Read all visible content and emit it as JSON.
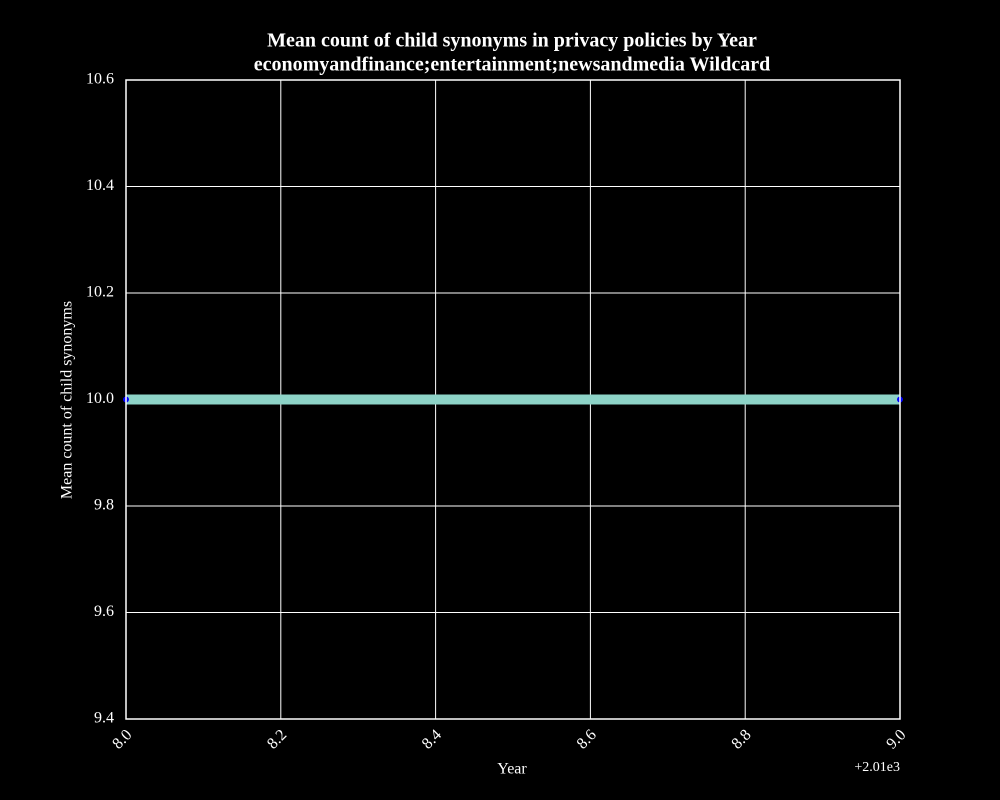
{
  "chart_data": {
    "type": "line",
    "title": "Mean count of child synonyms in privacy policies by Year",
    "subtitle": "economyandfinance;entertainment;newsandmedia Wildcard",
    "x_label": "Year",
    "y_label": "Mean count of child synonyms",
    "x_offset_label": "+2.01e3",
    "x": [
      8,
      9
    ],
    "series": [
      {
        "color": "#8dd3c7",
        "marker_color": "#0000ff",
        "values": [
          10,
          10
        ]
      }
    ],
    "xlim": [
      8,
      9
    ],
    "xticks": [
      {
        "value": 8,
        "label": "8.0"
      },
      8.2,
      8.4,
      8.6,
      8.8,
      {
        "value": 9,
        "label": "9.0"
      }
    ],
    "ylim": [
      9.4,
      10.6
    ],
    "yticks": [
      9.4,
      9.6,
      9.8,
      {
        "value": 10,
        "label": "10.0"
      },
      10.2,
      10.4,
      10.6
    ],
    "grid": true
  }
}
